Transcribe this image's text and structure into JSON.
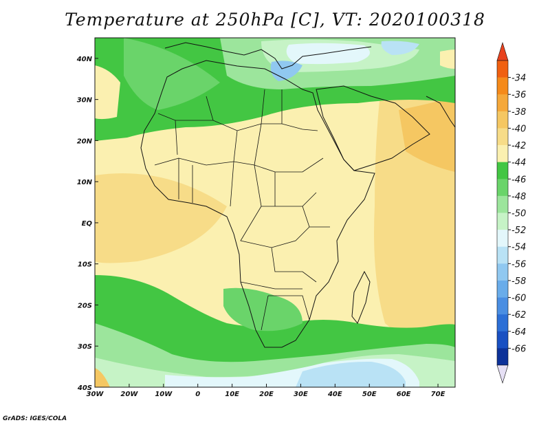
{
  "title": "Temperature at 250hPa [C], VT: 2020100318",
  "footer": "GrADS: IGES/COLA",
  "map": {
    "lon_range": [
      -30,
      75
    ],
    "lat_range": [
      -40,
      45
    ],
    "x_ticks": [
      {
        "lon": -30,
        "label": "30W"
      },
      {
        "lon": -20,
        "label": "20W"
      },
      {
        "lon": -10,
        "label": "10W"
      },
      {
        "lon": 0,
        "label": "0"
      },
      {
        "lon": 10,
        "label": "10E"
      },
      {
        "lon": 20,
        "label": "20E"
      },
      {
        "lon": 30,
        "label": "30E"
      },
      {
        "lon": 40,
        "label": "40E"
      },
      {
        "lon": 50,
        "label": "50E"
      },
      {
        "lon": 60,
        "label": "60E"
      },
      {
        "lon": 70,
        "label": "70E"
      }
    ],
    "y_ticks": [
      {
        "lat": 40,
        "label": "40N"
      },
      {
        "lat": 30,
        "label": "30N"
      },
      {
        "lat": 20,
        "label": "20N"
      },
      {
        "lat": 10,
        "label": "10N"
      },
      {
        "lat": 0,
        "label": "EQ"
      },
      {
        "lat": -10,
        "label": "10S"
      },
      {
        "lat": -20,
        "label": "20S"
      },
      {
        "lat": -30,
        "label": "30S"
      },
      {
        "lat": -40,
        "label": "40S"
      }
    ],
    "background_class": "-44"
  },
  "colorbar": {
    "labels": [
      "-34",
      "-36",
      "-38",
      "-40",
      "-42",
      "-44",
      "-46",
      "-48",
      "-50",
      "-52",
      "-54",
      "-56",
      "-58",
      "-60",
      "-62",
      "-64",
      "-66"
    ],
    "colors": [
      "#f06010",
      "#f58a1a",
      "#f5a83a",
      "#f5c762",
      "#f7dc88",
      "#fbf0b0",
      "#43c643",
      "#6ad46a",
      "#9ce59c",
      "#c6f3c6",
      "#e3f7fb",
      "#b9e2f5",
      "#90c8f0",
      "#69acea",
      "#4a8ee2",
      "#2c6fd6",
      "#1950c2",
      "#0d3299"
    ],
    "top_arrow_color": "#e8421e",
    "bottom_arrow_color": "#e6e0f5"
  }
}
